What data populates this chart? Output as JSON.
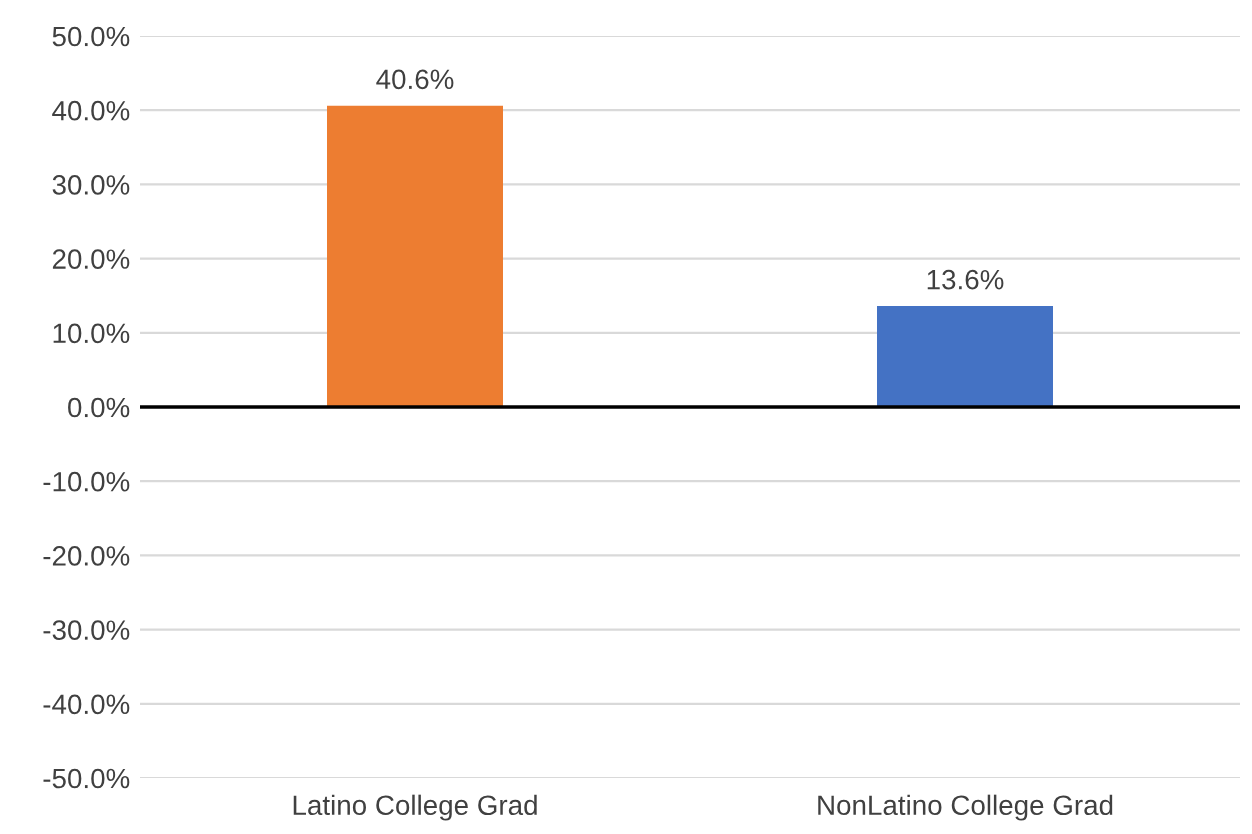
{
  "chart_data": {
    "type": "bar",
    "categories": [
      "Latino College Grad",
      "NonLatino College Grad"
    ],
    "values": [
      40.6,
      13.6
    ],
    "colors": [
      "#ed7d31",
      "#4472c4"
    ],
    "value_labels": [
      "40.6%",
      "13.6%"
    ],
    "ylim": [
      -50,
      50
    ],
    "yticks": [
      {
        "value": -50,
        "label": "-50.0%"
      },
      {
        "value": -40,
        "label": "-40.0%"
      },
      {
        "value": -30,
        "label": "-30.0%"
      },
      {
        "value": -20,
        "label": "-20.0%"
      },
      {
        "value": -10,
        "label": "-10.0%"
      },
      {
        "value": 0,
        "label": "0.0%"
      },
      {
        "value": 10,
        "label": "10.0%"
      },
      {
        "value": 20,
        "label": "20.0%"
      },
      {
        "value": 30,
        "label": "30.0%"
      },
      {
        "value": 40,
        "label": "40.0%"
      },
      {
        "value": 50,
        "label": "50.0%"
      }
    ],
    "grid": "y",
    "legend": false
  }
}
